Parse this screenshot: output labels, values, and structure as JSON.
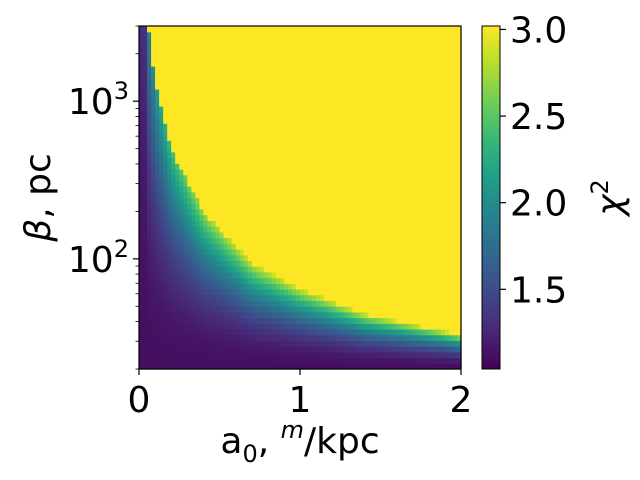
{
  "chart_data": {
    "type": "heatmap",
    "title": "",
    "xlabel": "a_0, m/kpc",
    "ylabel": "β, pc",
    "colorbar_label": "χ²",
    "colormap": "viridis",
    "x_range": [
      0,
      2
    ],
    "y_range": [
      20,
      3000
    ],
    "y_scale": "log",
    "x_ticks": [
      {
        "value": 0,
        "label": "0"
      },
      {
        "value": 1,
        "label": "1"
      },
      {
        "value": 2,
        "label": "2"
      }
    ],
    "y_ticks": [
      {
        "value": 100,
        "base": "10",
        "exp": "2"
      },
      {
        "value": 1000,
        "base": "10",
        "exp": "3"
      }
    ],
    "colorbar_range": [
      1.04,
      3.02
    ],
    "colorbar_ticks": [
      {
        "value": 1.5,
        "label": "1.5"
      },
      {
        "value": 2.0,
        "label": "2.0"
      },
      {
        "value": 2.5,
        "label": "2.5"
      },
      {
        "value": 3.0,
        "label": "3.0"
      }
    ],
    "saturation_boundary": [
      {
        "a0": 0.06,
        "beta": 3000
      },
      {
        "a0": 0.1,
        "beta": 1300
      },
      {
        "a0": 0.2,
        "beta": 500
      },
      {
        "a0": 0.4,
        "beta": 200
      },
      {
        "a0": 0.7,
        "beta": 95
      },
      {
        "a0": 1.0,
        "beta": 65
      },
      {
        "a0": 1.4,
        "beta": 45
      },
      {
        "a0": 2.0,
        "beta": 33
      }
    ]
  }
}
